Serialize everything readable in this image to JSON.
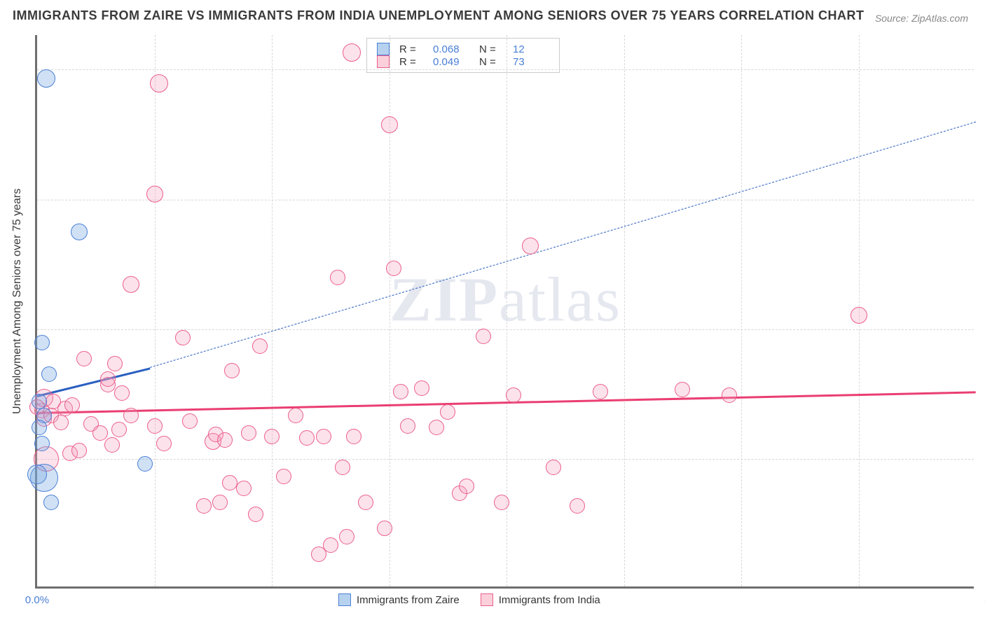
{
  "title": "IMMIGRANTS FROM ZAIRE VS IMMIGRANTS FROM INDIA UNEMPLOYMENT AMONG SENIORS OVER 75 YEARS CORRELATION CHART",
  "source": "Source: ZipAtlas.com",
  "ylabel": "Unemployment Among Seniors over 75 years",
  "watermark": "ZIPatlas",
  "chart": {
    "type": "scatter",
    "xlim": [
      0,
      40
    ],
    "ylim": [
      0,
      32
    ],
    "xticks": [
      0.0,
      40.0
    ],
    "yticks": [
      7.5,
      15.0,
      22.5,
      30.0
    ],
    "xtick_format": "pct1",
    "ytick_format": "pct1",
    "x_gridlines": [
      5,
      10,
      15,
      20,
      25,
      30,
      35
    ],
    "grid_color": "#d8d8d8",
    "axis_color": "#6f6f6f",
    "tick_color": "#4a7fd6",
    "background_color": "#ffffff"
  },
  "legend_top": {
    "r_label": "R =",
    "n_label": "N =",
    "rows": [
      {
        "swatch_fill": "#b7d2ef",
        "swatch_stroke": "#4a7fd6",
        "r": "0.068",
        "n": "12"
      },
      {
        "swatch_fill": "#fbd0db",
        "swatch_stroke": "#ea5f8b",
        "r": "0.049",
        "n": "73"
      }
    ]
  },
  "legend_bottom": {
    "items": [
      {
        "swatch_fill": "#b7d2ef",
        "swatch_stroke": "#4a7fd6",
        "label": "Immigrants from Zaire"
      },
      {
        "swatch_fill": "#fbd0db",
        "swatch_stroke": "#ea5f8b",
        "label": "Immigrants from India"
      }
    ]
  },
  "series": [
    {
      "name": "zaire",
      "fill": "rgba(120,170,225,0.35)",
      "stroke": "#4a7fd6",
      "marker_radius": 11,
      "trend": {
        "x1": 0,
        "y1": 11.2,
        "x2": 4.8,
        "y2": 12.8,
        "dash_x2": 40,
        "dash_y2": 27.0,
        "color": "#2a5fc0",
        "width": 3
      },
      "points": [
        [
          0.4,
          29.5,
          13
        ],
        [
          1.8,
          20.6,
          12
        ],
        [
          0.2,
          14.2,
          11
        ],
        [
          0.5,
          12.4,
          11
        ],
        [
          0.3,
          10.0,
          11
        ],
        [
          0.1,
          9.3,
          11
        ],
        [
          0.3,
          6.4,
          20
        ],
        [
          0.0,
          6.6,
          14
        ],
        [
          0.6,
          5.0,
          11
        ],
        [
          4.6,
          7.2,
          11
        ],
        [
          0.1,
          10.8,
          11
        ],
        [
          0.2,
          8.4,
          11
        ]
      ]
    },
    {
      "name": "india",
      "fill": "rgba(245,160,190,0.30)",
      "stroke": "#ea5f8b",
      "marker_radius": 11,
      "trend": {
        "x1": 0,
        "y1": 10.2,
        "x2": 40,
        "y2": 11.4,
        "color": "#ea3e72",
        "width": 3
      },
      "points": [
        [
          0.2,
          10.3,
          11
        ],
        [
          0.3,
          9.8,
          11
        ],
        [
          0.3,
          11.0,
          13
        ],
        [
          0.0,
          10.5,
          11
        ],
        [
          0.6,
          10.0,
          11
        ],
        [
          0.4,
          7.5,
          18
        ],
        [
          1.2,
          10.4,
          11
        ],
        [
          1.0,
          9.6,
          11
        ],
        [
          1.5,
          10.6,
          11
        ],
        [
          1.4,
          7.8,
          11
        ],
        [
          2.0,
          13.3,
          11
        ],
        [
          2.3,
          9.5,
          11
        ],
        [
          2.7,
          9.0,
          11
        ],
        [
          3.0,
          11.8,
          11
        ],
        [
          3.0,
          12.1,
          11
        ],
        [
          3.2,
          8.3,
          11
        ],
        [
          3.3,
          13.0,
          11
        ],
        [
          3.5,
          9.2,
          11
        ],
        [
          3.6,
          11.3,
          11
        ],
        [
          4.0,
          17.6,
          12
        ],
        [
          4.0,
          10.0,
          11
        ],
        [
          5.0,
          9.4,
          11
        ],
        [
          5.0,
          22.8,
          12
        ],
        [
          5.2,
          29.2,
          13
        ],
        [
          5.4,
          8.4,
          11
        ],
        [
          6.2,
          14.5,
          11
        ],
        [
          6.5,
          9.7,
          11
        ],
        [
          7.1,
          4.8,
          11
        ],
        [
          7.5,
          8.5,
          12
        ],
        [
          7.6,
          8.9,
          11
        ],
        [
          7.8,
          5.0,
          11
        ],
        [
          8.0,
          8.6,
          11
        ],
        [
          8.2,
          6.1,
          11
        ],
        [
          8.3,
          12.6,
          11
        ],
        [
          8.8,
          5.8,
          11
        ],
        [
          9.0,
          9.0,
          11
        ],
        [
          9.3,
          4.3,
          11
        ],
        [
          9.5,
          14.0,
          11
        ],
        [
          10.0,
          8.8,
          11
        ],
        [
          10.5,
          6.5,
          11
        ],
        [
          11.0,
          10.0,
          11
        ],
        [
          11.5,
          8.7,
          11
        ],
        [
          12.0,
          2.0,
          11
        ],
        [
          12.2,
          8.8,
          11
        ],
        [
          12.5,
          2.5,
          11
        ],
        [
          12.8,
          18.0,
          11
        ],
        [
          13.0,
          7.0,
          11
        ],
        [
          13.2,
          3.0,
          11
        ],
        [
          13.4,
          31.0,
          13
        ],
        [
          13.5,
          8.8,
          11
        ],
        [
          14.0,
          5.0,
          11
        ],
        [
          14.8,
          3.5,
          11
        ],
        [
          15.0,
          26.8,
          12
        ],
        [
          15.2,
          18.5,
          11
        ],
        [
          15.5,
          11.4,
          11
        ],
        [
          15.8,
          9.4,
          11
        ],
        [
          16.4,
          11.6,
          11
        ],
        [
          17.0,
          9.3,
          11
        ],
        [
          17.5,
          10.2,
          11
        ],
        [
          18.0,
          5.5,
          11
        ],
        [
          18.3,
          5.9,
          11
        ],
        [
          19.0,
          14.6,
          11
        ],
        [
          19.8,
          5.0,
          11
        ],
        [
          20.3,
          11.2,
          11
        ],
        [
          21.0,
          19.8,
          12
        ],
        [
          22.0,
          7.0,
          11
        ],
        [
          23.0,
          4.8,
          11
        ],
        [
          24.0,
          11.4,
          11
        ],
        [
          27.5,
          11.5,
          11
        ],
        [
          29.5,
          11.2,
          11
        ],
        [
          35.0,
          15.8,
          12
        ],
        [
          0.7,
          10.8,
          11
        ],
        [
          1.8,
          8.0,
          11
        ]
      ]
    }
  ]
}
